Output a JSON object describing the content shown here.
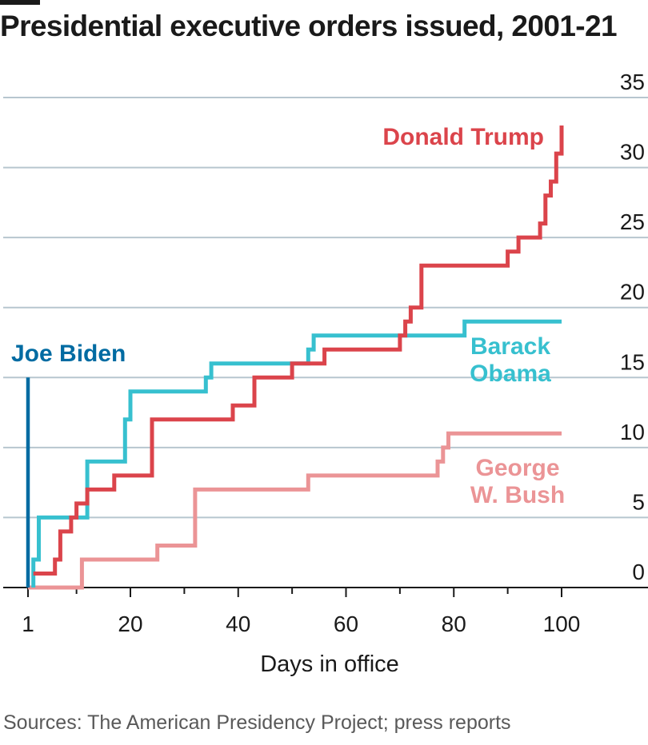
{
  "title": "Presidential executive orders issued, 2001-21",
  "source": "Sources: The American Presidency Project; press reports",
  "chart_data": {
    "type": "line",
    "step": true,
    "title": "Presidential executive orders issued, 2001-21",
    "xlabel": "Days in office",
    "ylabel": "",
    "xlim": [
      1,
      100
    ],
    "ylim": [
      0,
      35
    ],
    "x_ticks": [
      1,
      20,
      40,
      60,
      80,
      100
    ],
    "y_ticks": [
      0,
      5,
      10,
      15,
      20,
      25,
      30,
      35
    ],
    "grid": "horizontal",
    "y_axis_side": "right",
    "series": [
      {
        "name": "George W. Bush",
        "label_lines": [
          "George",
          "W. Bush"
        ],
        "color": "#eb9496",
        "points": [
          [
            1,
            0
          ],
          [
            11,
            0
          ],
          [
            11,
            2
          ],
          [
            25,
            2
          ],
          [
            25,
            3
          ],
          [
            32,
            3
          ],
          [
            32,
            7
          ],
          [
            53,
            7
          ],
          [
            53,
            8
          ],
          [
            77,
            8
          ],
          [
            77,
            9
          ],
          [
            78,
            9
          ],
          [
            78,
            10
          ],
          [
            79,
            10
          ],
          [
            79,
            11
          ],
          [
            100,
            11
          ]
        ]
      },
      {
        "name": "Barack Obama",
        "label_lines": [
          "Barack",
          "Obama"
        ],
        "color": "#37c0cf",
        "points": [
          [
            2,
            0
          ],
          [
            2,
            2
          ],
          [
            3,
            2
          ],
          [
            3,
            5
          ],
          [
            12,
            5
          ],
          [
            12,
            9
          ],
          [
            19,
            9
          ],
          [
            19,
            12
          ],
          [
            20,
            12
          ],
          [
            20,
            14
          ],
          [
            34,
            14
          ],
          [
            34,
            15
          ],
          [
            35,
            15
          ],
          [
            35,
            16
          ],
          [
            53,
            16
          ],
          [
            53,
            17
          ],
          [
            54,
            17
          ],
          [
            54,
            18
          ],
          [
            82,
            18
          ],
          [
            82,
            19
          ],
          [
            100,
            19
          ]
        ]
      },
      {
        "name": "Donald Trump",
        "label_lines": [
          "Donald Trump"
        ],
        "color": "#db444b",
        "points": [
          [
            2,
            1
          ],
          [
            6,
            1
          ],
          [
            6,
            2
          ],
          [
            7,
            2
          ],
          [
            7,
            4
          ],
          [
            9,
            4
          ],
          [
            9,
            5
          ],
          [
            10,
            5
          ],
          [
            10,
            6
          ],
          [
            12,
            6
          ],
          [
            12,
            7
          ],
          [
            17,
            7
          ],
          [
            17,
            8
          ],
          [
            24,
            8
          ],
          [
            24,
            12
          ],
          [
            39,
            12
          ],
          [
            39,
            13
          ],
          [
            43,
            13
          ],
          [
            43,
            15
          ],
          [
            50,
            15
          ],
          [
            50,
            16
          ],
          [
            56,
            16
          ],
          [
            56,
            17
          ],
          [
            70,
            17
          ],
          [
            70,
            18
          ],
          [
            71,
            18
          ],
          [
            71,
            19
          ],
          [
            72,
            19
          ],
          [
            72,
            20
          ],
          [
            74,
            20
          ],
          [
            74,
            23
          ],
          [
            90,
            23
          ],
          [
            90,
            24
          ],
          [
            92,
            24
          ],
          [
            92,
            25
          ],
          [
            96,
            25
          ],
          [
            96,
            26
          ],
          [
            97,
            26
          ],
          [
            97,
            28
          ],
          [
            98,
            28
          ],
          [
            98,
            29
          ],
          [
            99,
            29
          ],
          [
            99,
            31
          ],
          [
            100,
            31
          ],
          [
            100,
            33
          ]
        ]
      },
      {
        "name": "Joe Biden",
        "label_lines": [
          "Joe Biden"
        ],
        "color": "#006ba2",
        "points": [
          [
            1,
            0
          ],
          [
            1,
            15
          ]
        ]
      }
    ]
  }
}
